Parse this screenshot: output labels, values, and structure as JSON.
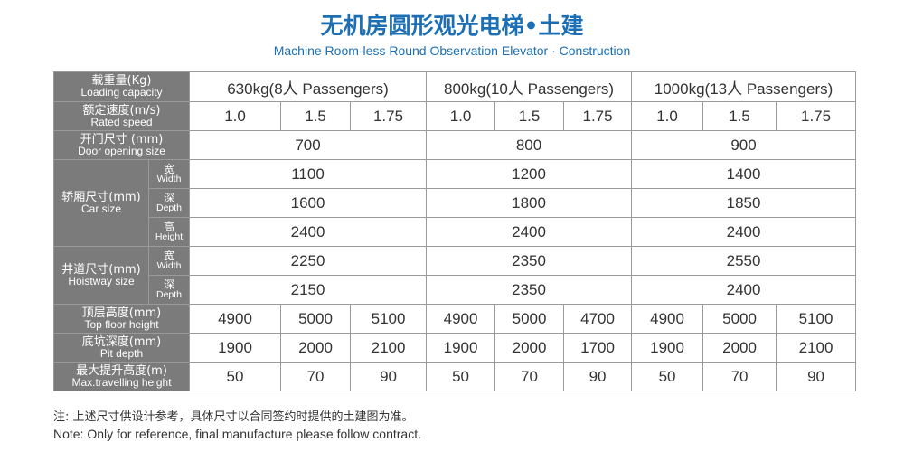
{
  "title": {
    "cn": "无机房圆形观光电梯•土建",
    "en": "Machine Room-less Round Observation Elevator · Construction"
  },
  "table": {
    "load": {
      "cn": "载重量(Kg)",
      "en": "Loading capacity",
      "values": [
        "630kg(8人 Passengers)",
        "800kg(10人 Passengers)",
        "1000kg(13人 Passengers)"
      ]
    },
    "speed": {
      "cn": "额定速度(m/s)",
      "en": "Rated speed",
      "values": [
        "1.0",
        "1.5",
        "1.75",
        "1.0",
        "1.5",
        "1.75",
        "1.0",
        "1.5",
        "1.75"
      ]
    },
    "door": {
      "cn": "开门尺寸 (mm)",
      "en": "Door opening size",
      "values": [
        "700",
        "800",
        "900"
      ]
    },
    "car": {
      "cn": "轿厢尺寸(mm)",
      "en": "Car size",
      "width": {
        "cn": "宽",
        "en": "Width",
        "values": [
          "1100",
          "1200",
          "1400"
        ]
      },
      "depth": {
        "cn": "深",
        "en": "Depth",
        "values": [
          "1600",
          "1800",
          "1850"
        ]
      },
      "height": {
        "cn": "高",
        "en": "Height",
        "values": [
          "2400",
          "2400",
          "2400"
        ]
      }
    },
    "hoistway": {
      "cn": "井道尺寸(mm)",
      "en": "Hoistway size",
      "width": {
        "cn": "宽",
        "en": "Width",
        "values": [
          "2250",
          "2350",
          "2550"
        ]
      },
      "depth": {
        "cn": "深",
        "en": "Depth",
        "values": [
          "2150",
          "2350",
          "2400"
        ]
      }
    },
    "top_floor": {
      "cn": "顶层高度(mm)",
      "en": "Top floor height",
      "values": [
        "4900",
        "5000",
        "5100",
        "4900",
        "5000",
        "4700",
        "4900",
        "5000",
        "5100"
      ]
    },
    "pit": {
      "cn": "底坑深度(mm)",
      "en": "Pit depth",
      "values": [
        "1900",
        "2000",
        "2100",
        "1900",
        "2000",
        "1700",
        "1900",
        "2000",
        "2100"
      ]
    },
    "travel": {
      "cn": "最大提升高度(m)",
      "en": "Max.travelling height",
      "values": [
        "50",
        "70",
        "90",
        "50",
        "70",
        "90",
        "50",
        "70",
        "90"
      ]
    }
  },
  "note": {
    "cn": "注: 上述尺寸供设计参考，具体尺寸以合同签约时提供的土建图为准。",
    "en": "Note: Only for reference, final manufacture please follow contract."
  },
  "colors": {
    "title": "#1c6fb5",
    "header_bg": "#7b7b7b",
    "border": "#9a9a9a"
  }
}
